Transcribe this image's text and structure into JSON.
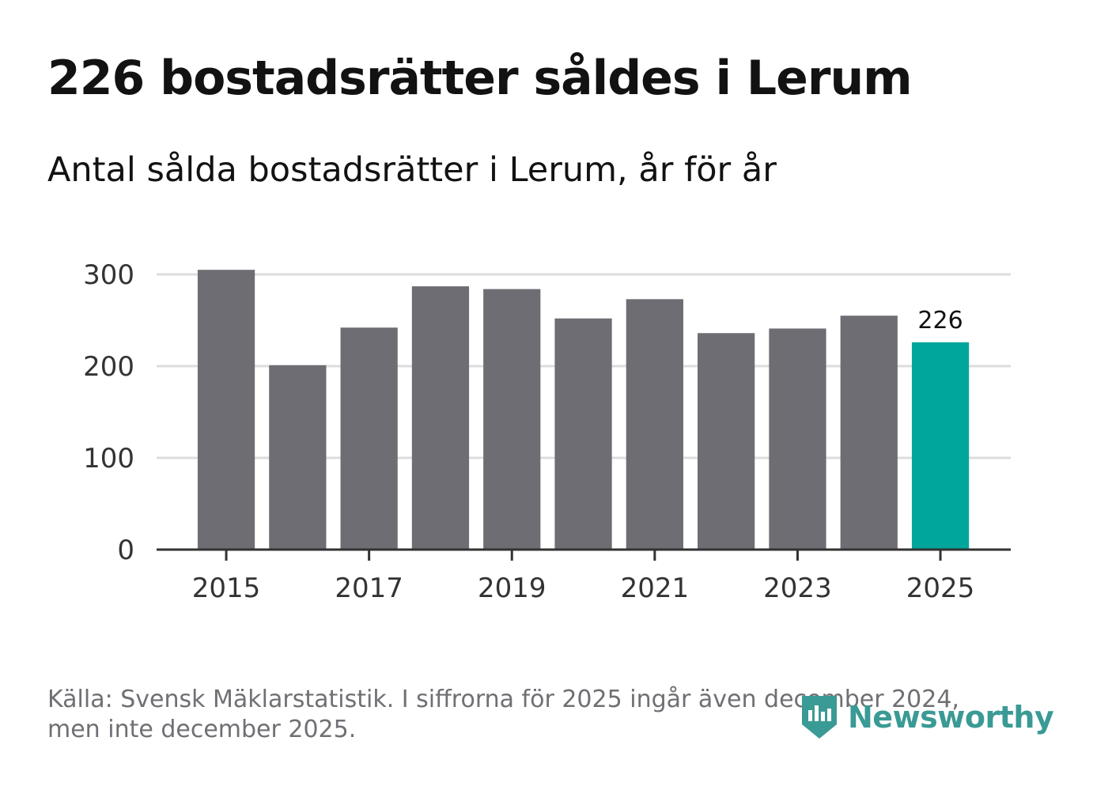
{
  "title": "226 bostadsrätter såldes i Lerum",
  "subtitle": "Antal sålda bostadsrätter i Lerum, år för år",
  "footnote": "Källa: Svensk Mäklarstatistik. I siffrorna för 2025 ingår även december 2024, men inte december 2025.",
  "logo_text": "Newsworthy",
  "colors": {
    "bar": "#6e6d73",
    "highlight": "#00a69c",
    "grid": "#dddddd",
    "axis": "#333333",
    "text": "#333333",
    "logo": "#3a9a95"
  },
  "chart_data": {
    "type": "bar",
    "title": "Antal sålda bostadsrätter i Lerum, år för år",
    "categories": [
      "2015",
      "2016",
      "2017",
      "2018",
      "2019",
      "2020",
      "2021",
      "2022",
      "2023",
      "2024",
      "2025"
    ],
    "values": [
      305,
      201,
      242,
      287,
      284,
      252,
      273,
      236,
      241,
      255,
      226
    ],
    "highlight_index": 10,
    "data_labels": [
      {
        "index": 10,
        "text": "226"
      }
    ],
    "x_tick_labels": [
      "2015",
      "2017",
      "2019",
      "2021",
      "2023",
      "2025"
    ],
    "y_ticks": [
      0,
      100,
      200,
      300
    ],
    "ylim": [
      0,
      300
    ],
    "xlabel": "",
    "ylabel": "",
    "grid": true
  }
}
